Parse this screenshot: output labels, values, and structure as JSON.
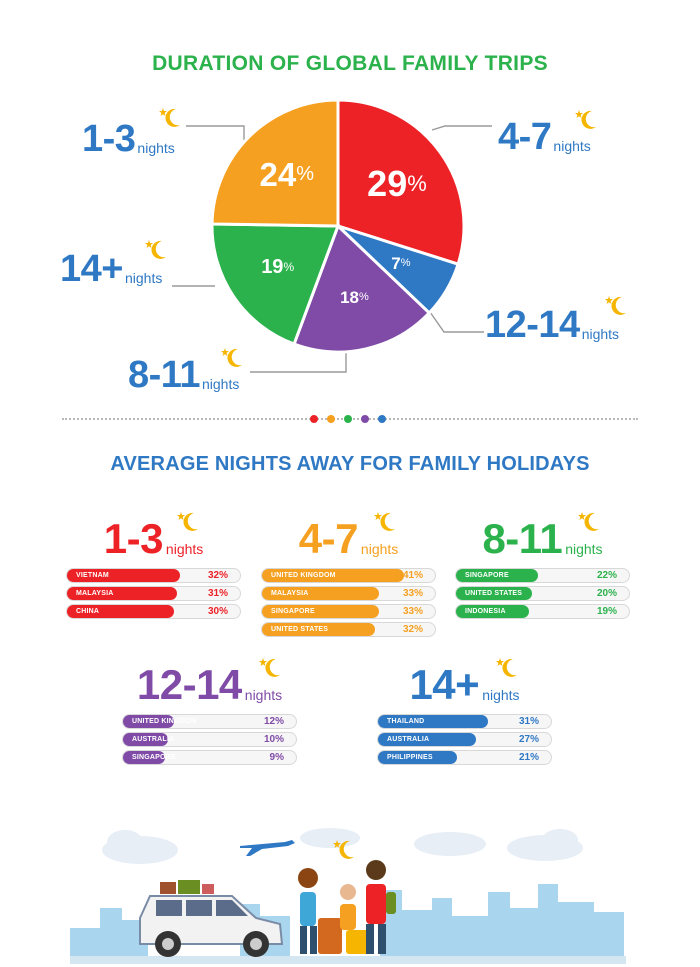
{
  "titles": {
    "top": "DURATION OF GLOBAL FAMILY TRIPS",
    "middle": "AVERAGE NIGHTS AWAY FOR FAMILY HOLIDAYS"
  },
  "unit": "nights",
  "colors": {
    "red": "#EC2227",
    "orange": "#F5A021",
    "green": "#2BB24C",
    "purple": "#7F4BA6",
    "blue": "#2F78C4",
    "moon": "#F5B500"
  },
  "chart_data": [
    {
      "type": "pie",
      "title": "DURATION OF GLOBAL FAMILY TRIPS",
      "slices": [
        {
          "label": "4-7",
          "value": 29,
          "display": "29",
          "color": "#EC2227"
        },
        {
          "label": "12-14",
          "value": 7,
          "display": "7",
          "color": "#2F78C4"
        },
        {
          "label": "8-11",
          "value": 18,
          "display": "18",
          "color": "#7F4BA6"
        },
        {
          "label": "14+",
          "value": 19,
          "display": "19",
          "color": "#2BB24C"
        },
        {
          "label": "1-3",
          "value": 24,
          "display": "24",
          "color": "#F5A021"
        }
      ]
    },
    {
      "type": "bar",
      "title": "AVERAGE NIGHTS AWAY FOR FAMILY HOLIDAYS",
      "groups": [
        {
          "range": "1-3",
          "color": "#EC2227",
          "rows": [
            {
              "country": "VIETNAM",
              "value": 32,
              "display": "32%"
            },
            {
              "country": "MALAYSIA",
              "value": 31,
              "display": "31%"
            },
            {
              "country": "CHINA",
              "value": 30,
              "display": "30%"
            }
          ]
        },
        {
          "range": "4-7",
          "color": "#F5A021",
          "rows": [
            {
              "country": "UNITED KINGDOM",
              "value": 41,
              "display": "41%"
            },
            {
              "country": "MALAYSIA",
              "value": 33,
              "display": "33%"
            },
            {
              "country": "SINGAPORE",
              "value": 33,
              "display": "33%"
            },
            {
              "country": "UNITED STATES",
              "value": 32,
              "display": "32%"
            }
          ]
        },
        {
          "range": "8-11",
          "color": "#2BB24C",
          "rows": [
            {
              "country": "SINGAPORE",
              "value": 22,
              "display": "22%"
            },
            {
              "country": "UNITED STATES",
              "value": 20,
              "display": "20%"
            },
            {
              "country": "INDONESIA",
              "value": 19,
              "display": "19%"
            }
          ]
        },
        {
          "range": "12-14",
          "color": "#7F4BA6",
          "rows": [
            {
              "country": "UNITED KINGDOM",
              "value": 12,
              "display": "12%"
            },
            {
              "country": "AUSTRALIA",
              "value": 10,
              "display": "10%"
            },
            {
              "country": "SINGAPORE",
              "value": 9,
              "display": "9%"
            }
          ]
        },
        {
          "range": "14+",
          "color": "#2F78C4",
          "rows": [
            {
              "country": "THAILAND",
              "value": 31,
              "display": "31%"
            },
            {
              "country": "AUSTRALIA",
              "value": 27,
              "display": "27%"
            },
            {
              "country": "PHILIPPINES",
              "value": 21,
              "display": "21%"
            }
          ]
        }
      ]
    }
  ]
}
